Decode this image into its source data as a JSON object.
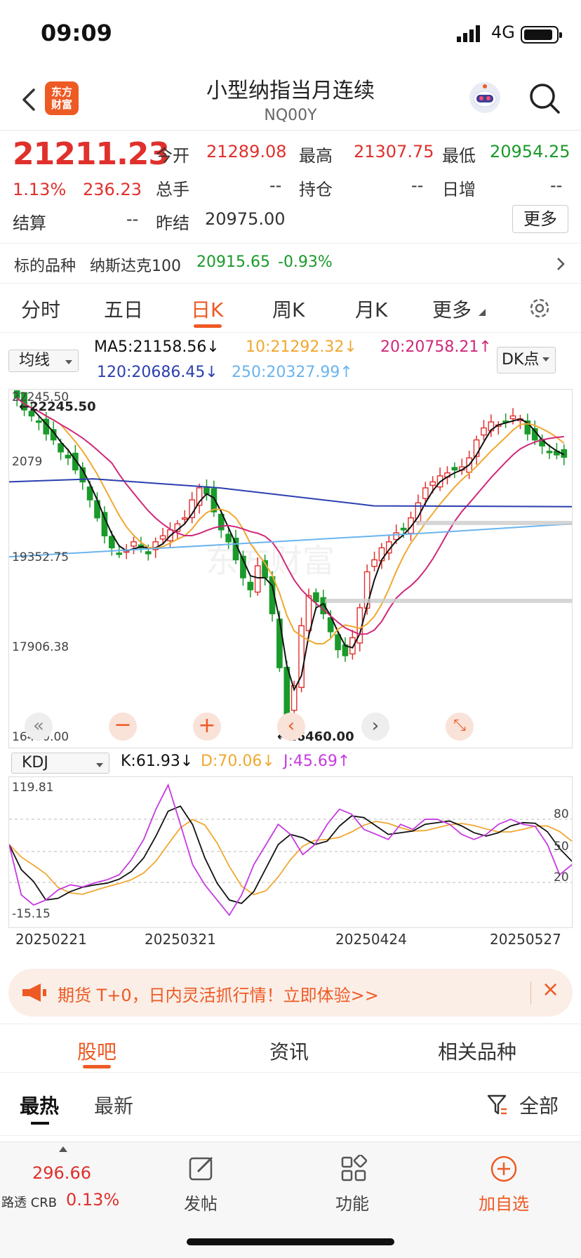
{
  "status": {
    "time": "09:09",
    "network": "4G"
  },
  "header": {
    "title": "小型纳指当月连续",
    "code": "NQ00Y",
    "logo_text": "东方\n财富"
  },
  "quote": {
    "price": "21211.23",
    "pct": "1.13%",
    "change": "236.23",
    "open_label": "今开",
    "open": "21289.08",
    "high_label": "最高",
    "high": "21307.75",
    "low_label": "最低",
    "low": "20954.25",
    "vol_label": "总手",
    "vol": "--",
    "oi_label": "持仓",
    "oi": "--",
    "daily_add_label": "日增",
    "daily_add": "--",
    "settle_label": "结算",
    "settle": "--",
    "prev_settle_label": "昨结",
    "prev_settle": "20975.00",
    "more": "更多",
    "underlying_label": "标的品种",
    "underlying_name": "纳斯达克100",
    "underlying_price": "20915.65",
    "underlying_pct": "-0.93%"
  },
  "tabs": [
    "分时",
    "五日",
    "日K",
    "周K",
    "月K",
    "更多"
  ],
  "ma": {
    "select": "均线",
    "ma5": "MA5:21158.56",
    "ma10": "10:21292.32",
    "ma20": "20:20758.21",
    "ma120": "120:20686.45",
    "ma250": "250:20327.99",
    "dk": "DK点",
    "arrow_ma5": "↓",
    "arrow_ma10": "↓",
    "arrow_ma20": "↑",
    "arrow_ma120": "↓",
    "arrow_ma250": "↑"
  },
  "chart_labels": {
    "y_top": "22245.50",
    "y_mid1": "19352.75",
    "y_mid2": "17906.38",
    "y_bot": "16460.00",
    "y_2079": "2079",
    "max_mark": "22245.50",
    "min_mark": "16460.00",
    "watermark": "东方财富"
  },
  "kdj": {
    "select": "KDJ",
    "k": "K:61.93",
    "d": "D:70.06",
    "j": "J:45.69",
    "k_arrow": "↓",
    "d_arrow": "↓",
    "j_arrow": "↑",
    "y_top": "119.81",
    "y_bot": "-15.15",
    "l80": "80",
    "l50": "50",
    "l20": "20"
  },
  "dates": [
    "20250221",
    "20250321",
    "20250424",
    "20250527"
  ],
  "colors": {
    "up": "#e0302c",
    "down": "#1a9a2a",
    "accent": "#ee5a24",
    "ma5": "#111111",
    "ma10": "#f0a830",
    "ma20": "#d0287a",
    "ma120": "#2b3fb0",
    "ma250": "#6ab4ef"
  },
  "banner": {
    "text": "期货 T+0，日内灵活抓行情！立即体验>>"
  },
  "sub_tabs": [
    "股吧",
    "资讯",
    "相关品种"
  ],
  "filter": {
    "hot": "最热",
    "new": "最新",
    "all": "全部"
  },
  "bottom": {
    "index_value": "296.66",
    "index_name": "路透 CRB",
    "index_pct": "0.13%",
    "post": "发帖",
    "func": "功能",
    "add": "加自选"
  },
  "chart_data": {
    "type": "candlestick",
    "title": "小型纳指当月连续 日K",
    "x": [
      "20250221",
      "20250321",
      "20250424",
      "20250527"
    ],
    "ylim": [
      16460.0,
      22245.5
    ],
    "y_ticks": [
      22245.5,
      19352.75,
      17906.38,
      16460.0
    ],
    "max": 22245.5,
    "min": 16460.0,
    "ma": {
      "MA5": 21158.56,
      "MA10": 21292.32,
      "MA20": 20758.21,
      "MA120": 20686.45,
      "MA250": 20327.99
    },
    "kdj": {
      "K": 61.93,
      "D": 70.06,
      "J": 45.69,
      "ylim": [
        -15.15,
        119.81
      ],
      "levels": [
        80,
        50,
        20
      ]
    }
  }
}
